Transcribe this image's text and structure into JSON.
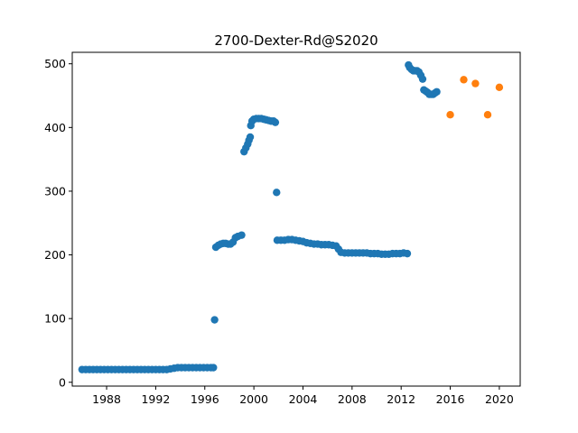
{
  "chart_data": {
    "type": "scatter",
    "title": "2700-Dexter-Rd@S2020",
    "xlabel": "",
    "ylabel": "",
    "xlim": [
      1985.2,
      2021.7
    ],
    "ylim": [
      -6,
      518
    ],
    "x_ticks": [
      1988,
      1992,
      1996,
      2000,
      2004,
      2008,
      2012,
      2016,
      2020
    ],
    "y_ticks": [
      0,
      100,
      200,
      300,
      400,
      500
    ],
    "grid": false,
    "legend": "none",
    "series": [
      {
        "color": "#1f77b4",
        "points": [
          [
            1986.0,
            20
          ],
          [
            1986.3,
            20
          ],
          [
            1986.6,
            20
          ],
          [
            1986.9,
            20
          ],
          [
            1987.2,
            20
          ],
          [
            1987.5,
            20
          ],
          [
            1987.8,
            20
          ],
          [
            1988.1,
            20
          ],
          [
            1988.4,
            20
          ],
          [
            1988.7,
            20
          ],
          [
            1989.0,
            20
          ],
          [
            1989.3,
            20
          ],
          [
            1989.6,
            20
          ],
          [
            1989.9,
            20
          ],
          [
            1990.2,
            20
          ],
          [
            1990.5,
            20
          ],
          [
            1990.8,
            20
          ],
          [
            1991.1,
            20
          ],
          [
            1991.4,
            20
          ],
          [
            1991.7,
            20
          ],
          [
            1992.0,
            20
          ],
          [
            1992.3,
            20
          ],
          [
            1992.6,
            20
          ],
          [
            1992.9,
            20
          ],
          [
            1993.2,
            21
          ],
          [
            1993.5,
            22
          ],
          [
            1993.8,
            23
          ],
          [
            1994.1,
            23
          ],
          [
            1994.4,
            23
          ],
          [
            1994.7,
            23
          ],
          [
            1995.0,
            23
          ],
          [
            1995.3,
            23
          ],
          [
            1995.6,
            23
          ],
          [
            1995.9,
            23
          ],
          [
            1996.2,
            23
          ],
          [
            1996.5,
            23
          ],
          [
            1996.7,
            23
          ],
          [
            1996.8,
            98
          ],
          [
            1996.9,
            212
          ],
          [
            1997.1,
            215
          ],
          [
            1997.3,
            217
          ],
          [
            1997.5,
            218
          ],
          [
            1997.7,
            218
          ],
          [
            1997.9,
            217
          ],
          [
            1998.1,
            217
          ],
          [
            1998.3,
            220
          ],
          [
            1998.5,
            227
          ],
          [
            1998.7,
            229
          ],
          [
            1999.0,
            231
          ],
          [
            1999.2,
            362
          ],
          [
            1999.35,
            368
          ],
          [
            1999.5,
            374
          ],
          [
            1999.6,
            380
          ],
          [
            1999.7,
            385
          ],
          [
            1999.75,
            403
          ],
          [
            1999.85,
            410
          ],
          [
            2000.0,
            413
          ],
          [
            2000.2,
            414
          ],
          [
            2000.4,
            414
          ],
          [
            2000.6,
            414
          ],
          [
            2000.8,
            413
          ],
          [
            2001.0,
            412
          ],
          [
            2001.2,
            411
          ],
          [
            2001.4,
            410
          ],
          [
            2001.6,
            410
          ],
          [
            2001.75,
            408
          ],
          [
            2001.85,
            298
          ],
          [
            2001.9,
            223
          ],
          [
            2002.2,
            223
          ],
          [
            2002.5,
            223
          ],
          [
            2002.8,
            224
          ],
          [
            2003.1,
            224
          ],
          [
            2003.4,
            223
          ],
          [
            2003.7,
            222
          ],
          [
            2004.0,
            221
          ],
          [
            2004.3,
            219
          ],
          [
            2004.6,
            218
          ],
          [
            2004.9,
            217
          ],
          [
            2005.2,
            217
          ],
          [
            2005.5,
            216
          ],
          [
            2005.8,
            216
          ],
          [
            2006.1,
            216
          ],
          [
            2006.4,
            215
          ],
          [
            2006.7,
            214
          ],
          [
            2006.9,
            209
          ],
          [
            2007.1,
            204
          ],
          [
            2007.4,
            203
          ],
          [
            2007.7,
            203
          ],
          [
            2008.0,
            203
          ],
          [
            2008.3,
            203
          ],
          [
            2008.6,
            203
          ],
          [
            2008.9,
            203
          ],
          [
            2009.2,
            203
          ],
          [
            2009.5,
            202
          ],
          [
            2009.8,
            202
          ],
          [
            2010.1,
            202
          ],
          [
            2010.4,
            201
          ],
          [
            2010.7,
            201
          ],
          [
            2011.0,
            201
          ],
          [
            2011.3,
            202
          ],
          [
            2011.6,
            202
          ],
          [
            2011.9,
            202
          ],
          [
            2012.2,
            203
          ],
          [
            2012.5,
            202
          ],
          [
            2012.6,
            498
          ],
          [
            2012.7,
            494
          ],
          [
            2012.85,
            491
          ],
          [
            2013.0,
            489
          ],
          [
            2013.15,
            489
          ],
          [
            2013.3,
            489
          ],
          [
            2013.45,
            487
          ],
          [
            2013.6,
            482
          ],
          [
            2013.75,
            476
          ],
          [
            2013.85,
            459
          ],
          [
            2014.0,
            457
          ],
          [
            2014.15,
            455
          ],
          [
            2014.3,
            452
          ],
          [
            2014.45,
            452
          ],
          [
            2014.6,
            452
          ],
          [
            2014.75,
            454
          ],
          [
            2014.9,
            456
          ]
        ]
      },
      {
        "color": "#ff7f0e",
        "points": [
          [
            2016.0,
            420
          ],
          [
            2017.1,
            475
          ],
          [
            2018.05,
            469
          ],
          [
            2019.05,
            420
          ],
          [
            2020.0,
            463
          ]
        ]
      }
    ]
  }
}
